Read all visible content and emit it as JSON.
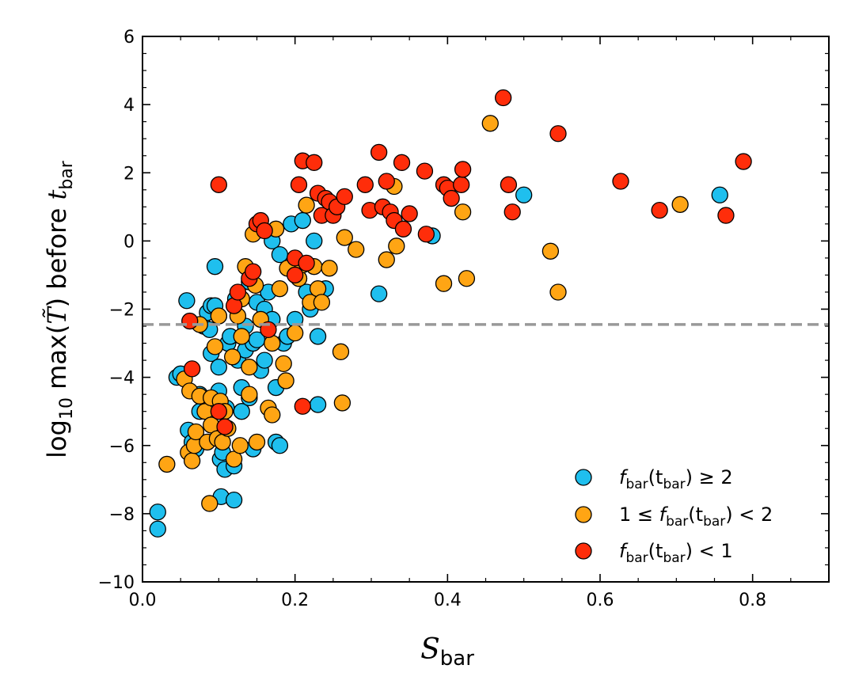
{
  "chart_data": {
    "type": "scatter",
    "xlabel": "S_bar",
    "ylabel": "log10 max(T̃) before t_bar",
    "xlim": [
      0.0,
      0.9
    ],
    "ylim": [
      -10,
      6
    ],
    "xticks": [
      "0.0",
      "0.2",
      "0.4",
      "0.6",
      "0.8"
    ],
    "xtick_values": [
      0.0,
      0.2,
      0.4,
      0.6,
      0.8
    ],
    "yticks": [
      "−10",
      "−8",
      "−6",
      "−4",
      "−2",
      "0",
      "2",
      "4",
      "6"
    ],
    "ytick_values": [
      -10,
      -8,
      -6,
      -4,
      -2,
      0,
      2,
      4,
      6
    ],
    "reference_line": {
      "y": -2.45,
      "style": "dashed",
      "color": "#999999"
    },
    "legend_position": "bottom-right",
    "series": [
      {
        "name": "f_bar(t_bar) ≥ 2",
        "color": "#1fbfee",
        "points": [
          [
            0.02,
            -7.95
          ],
          [
            0.02,
            -8.45
          ],
          [
            0.045,
            -4.0
          ],
          [
            0.05,
            -3.9
          ],
          [
            0.058,
            -1.75
          ],
          [
            0.06,
            -5.55
          ],
          [
            0.065,
            -5.9
          ],
          [
            0.07,
            -6.1
          ],
          [
            0.075,
            -5.0
          ],
          [
            0.075,
            -4.5
          ],
          [
            0.08,
            -2.5
          ],
          [
            0.085,
            -2.1
          ],
          [
            0.088,
            -2.6
          ],
          [
            0.09,
            -3.3
          ],
          [
            0.09,
            -1.9
          ],
          [
            0.095,
            -0.75
          ],
          [
            0.095,
            -1.9
          ],
          [
            0.1,
            -2.2
          ],
          [
            0.1,
            -3.7
          ],
          [
            0.1,
            -4.4
          ],
          [
            0.102,
            -6.4
          ],
          [
            0.103,
            -7.5
          ],
          [
            0.105,
            -6.2
          ],
          [
            0.108,
            -6.7
          ],
          [
            0.11,
            -4.9
          ],
          [
            0.112,
            -3.0
          ],
          [
            0.115,
            -2.8
          ],
          [
            0.12,
            -6.6
          ],
          [
            0.12,
            -7.6
          ],
          [
            0.122,
            -1.7
          ],
          [
            0.125,
            -3.5
          ],
          [
            0.13,
            -4.3
          ],
          [
            0.13,
            -5.0
          ],
          [
            0.135,
            -3.2
          ],
          [
            0.135,
            -2.5
          ],
          [
            0.14,
            -1.2
          ],
          [
            0.14,
            -4.6
          ],
          [
            0.145,
            -3.0
          ],
          [
            0.145,
            -6.1
          ],
          [
            0.15,
            -1.8
          ],
          [
            0.15,
            -2.9
          ],
          [
            0.155,
            -3.8
          ],
          [
            0.16,
            -2.0
          ],
          [
            0.16,
            -3.5
          ],
          [
            0.165,
            -1.5
          ],
          [
            0.17,
            0.0
          ],
          [
            0.17,
            -2.3
          ],
          [
            0.175,
            -4.3
          ],
          [
            0.175,
            -5.9
          ],
          [
            0.18,
            -6.0
          ],
          [
            0.18,
            -0.4
          ],
          [
            0.185,
            -3.0
          ],
          [
            0.19,
            -2.8
          ],
          [
            0.195,
            0.5
          ],
          [
            0.2,
            -2.3
          ],
          [
            0.205,
            -1.1
          ],
          [
            0.21,
            0.6
          ],
          [
            0.215,
            -1.5
          ],
          [
            0.22,
            -2.0
          ],
          [
            0.225,
            0.0
          ],
          [
            0.23,
            -2.8
          ],
          [
            0.23,
            -4.8
          ],
          [
            0.24,
            -1.4
          ],
          [
            0.31,
            -1.55
          ],
          [
            0.38,
            0.15
          ],
          [
            0.5,
            1.35
          ],
          [
            0.757,
            1.35
          ]
        ]
      },
      {
        "name": "1 ≤ f_bar(t_bar) < 2",
        "color": "#ffa514",
        "points": [
          [
            0.032,
            -6.55
          ],
          [
            0.055,
            -4.05
          ],
          [
            0.06,
            -6.2
          ],
          [
            0.062,
            -4.4
          ],
          [
            0.065,
            -6.45
          ],
          [
            0.068,
            -6.0
          ],
          [
            0.07,
            -5.6
          ],
          [
            0.075,
            -2.45
          ],
          [
            0.075,
            -4.55
          ],
          [
            0.082,
            -5.0
          ],
          [
            0.085,
            -5.9
          ],
          [
            0.088,
            -7.7
          ],
          [
            0.09,
            -5.4
          ],
          [
            0.09,
            -4.6
          ],
          [
            0.095,
            -3.1
          ],
          [
            0.098,
            -5.8
          ],
          [
            0.1,
            -2.2
          ],
          [
            0.102,
            -4.7
          ],
          [
            0.105,
            -5.9
          ],
          [
            0.108,
            -5.0
          ],
          [
            0.112,
            -5.5
          ],
          [
            0.118,
            -3.4
          ],
          [
            0.12,
            -6.4
          ],
          [
            0.125,
            -2.2
          ],
          [
            0.128,
            -6.0
          ],
          [
            0.13,
            -2.8
          ],
          [
            0.13,
            -1.7
          ],
          [
            0.135,
            -0.75
          ],
          [
            0.14,
            -4.5
          ],
          [
            0.14,
            -3.7
          ],
          [
            0.145,
            0.2
          ],
          [
            0.148,
            -1.3
          ],
          [
            0.15,
            -5.9
          ],
          [
            0.155,
            -2.3
          ],
          [
            0.165,
            -4.9
          ],
          [
            0.17,
            -5.1
          ],
          [
            0.17,
            -3.0
          ],
          [
            0.175,
            0.35
          ],
          [
            0.18,
            -1.4
          ],
          [
            0.185,
            -3.6
          ],
          [
            0.188,
            -4.1
          ],
          [
            0.19,
            -0.8
          ],
          [
            0.2,
            -2.7
          ],
          [
            0.205,
            -1.1
          ],
          [
            0.21,
            -0.7
          ],
          [
            0.215,
            1.05
          ],
          [
            0.22,
            -1.8
          ],
          [
            0.225,
            -0.75
          ],
          [
            0.23,
            -1.4
          ],
          [
            0.235,
            -1.8
          ],
          [
            0.245,
            -0.8
          ],
          [
            0.26,
            -3.25
          ],
          [
            0.262,
            -4.75
          ],
          [
            0.265,
            0.1
          ],
          [
            0.28,
            -0.25
          ],
          [
            0.32,
            -0.55
          ],
          [
            0.33,
            1.6
          ],
          [
            0.333,
            -0.15
          ],
          [
            0.395,
            -1.25
          ],
          [
            0.42,
            0.85
          ],
          [
            0.425,
            -1.1
          ],
          [
            0.456,
            3.45
          ],
          [
            0.535,
            -0.3
          ],
          [
            0.545,
            -1.5
          ],
          [
            0.705,
            1.07
          ]
        ]
      },
      {
        "name": "f_bar(t_bar) < 1",
        "color": "#ff2d0a",
        "points": [
          [
            0.062,
            -2.35
          ],
          [
            0.065,
            -3.75
          ],
          [
            0.1,
            1.65
          ],
          [
            0.1,
            -5.0
          ],
          [
            0.108,
            -5.45
          ],
          [
            0.12,
            -1.9
          ],
          [
            0.125,
            -1.5
          ],
          [
            0.14,
            -1.1
          ],
          [
            0.145,
            -0.9
          ],
          [
            0.15,
            0.5
          ],
          [
            0.155,
            0.6
          ],
          [
            0.16,
            0.3
          ],
          [
            0.165,
            -2.6
          ],
          [
            0.2,
            -0.5
          ],
          [
            0.2,
            -1.0
          ],
          [
            0.205,
            1.65
          ],
          [
            0.21,
            2.35
          ],
          [
            0.21,
            -4.85
          ],
          [
            0.215,
            -0.65
          ],
          [
            0.225,
            2.3
          ],
          [
            0.23,
            1.4
          ],
          [
            0.235,
            0.75
          ],
          [
            0.24,
            1.25
          ],
          [
            0.245,
            1.15
          ],
          [
            0.25,
            0.75
          ],
          [
            0.255,
            1.0
          ],
          [
            0.265,
            1.3
          ],
          [
            0.292,
            1.65
          ],
          [
            0.298,
            0.9
          ],
          [
            0.31,
            2.6
          ],
          [
            0.315,
            1.0
          ],
          [
            0.32,
            1.75
          ],
          [
            0.325,
            0.85
          ],
          [
            0.33,
            0.6
          ],
          [
            0.34,
            2.3
          ],
          [
            0.342,
            0.35
          ],
          [
            0.35,
            0.8
          ],
          [
            0.37,
            2.05
          ],
          [
            0.372,
            0.2
          ],
          [
            0.395,
            1.65
          ],
          [
            0.4,
            1.55
          ],
          [
            0.405,
            1.25
          ],
          [
            0.418,
            1.65
          ],
          [
            0.42,
            2.1
          ],
          [
            0.473,
            4.2
          ],
          [
            0.48,
            1.65
          ],
          [
            0.485,
            0.85
          ],
          [
            0.545,
            3.15
          ],
          [
            0.627,
            1.75
          ],
          [
            0.678,
            0.9
          ],
          [
            0.765,
            0.75
          ],
          [
            0.788,
            2.33
          ]
        ]
      }
    ]
  },
  "legend": {
    "item0": {
      "pre": "f",
      "sub": "bar",
      "mid": "(t",
      "sub2": "bar",
      "post": ") ≥ 2"
    },
    "item1": {
      "lead": "1 ≤ ",
      "pre": "f",
      "sub": "bar",
      "mid": "(t",
      "sub2": "bar",
      "post": ") < 2"
    },
    "item2": {
      "pre": "f",
      "sub": "bar",
      "mid": "(t",
      "sub2": "bar",
      "post": ") < 1"
    }
  },
  "labels": {
    "x_main": "S",
    "x_sub": "bar",
    "y_log": "log",
    "y_log_sub": "10",
    "y_rest": " max(",
    "y_T": "T̃",
    "y_close": ") before ",
    "y_t": "t",
    "y_t_sub": "bar"
  }
}
